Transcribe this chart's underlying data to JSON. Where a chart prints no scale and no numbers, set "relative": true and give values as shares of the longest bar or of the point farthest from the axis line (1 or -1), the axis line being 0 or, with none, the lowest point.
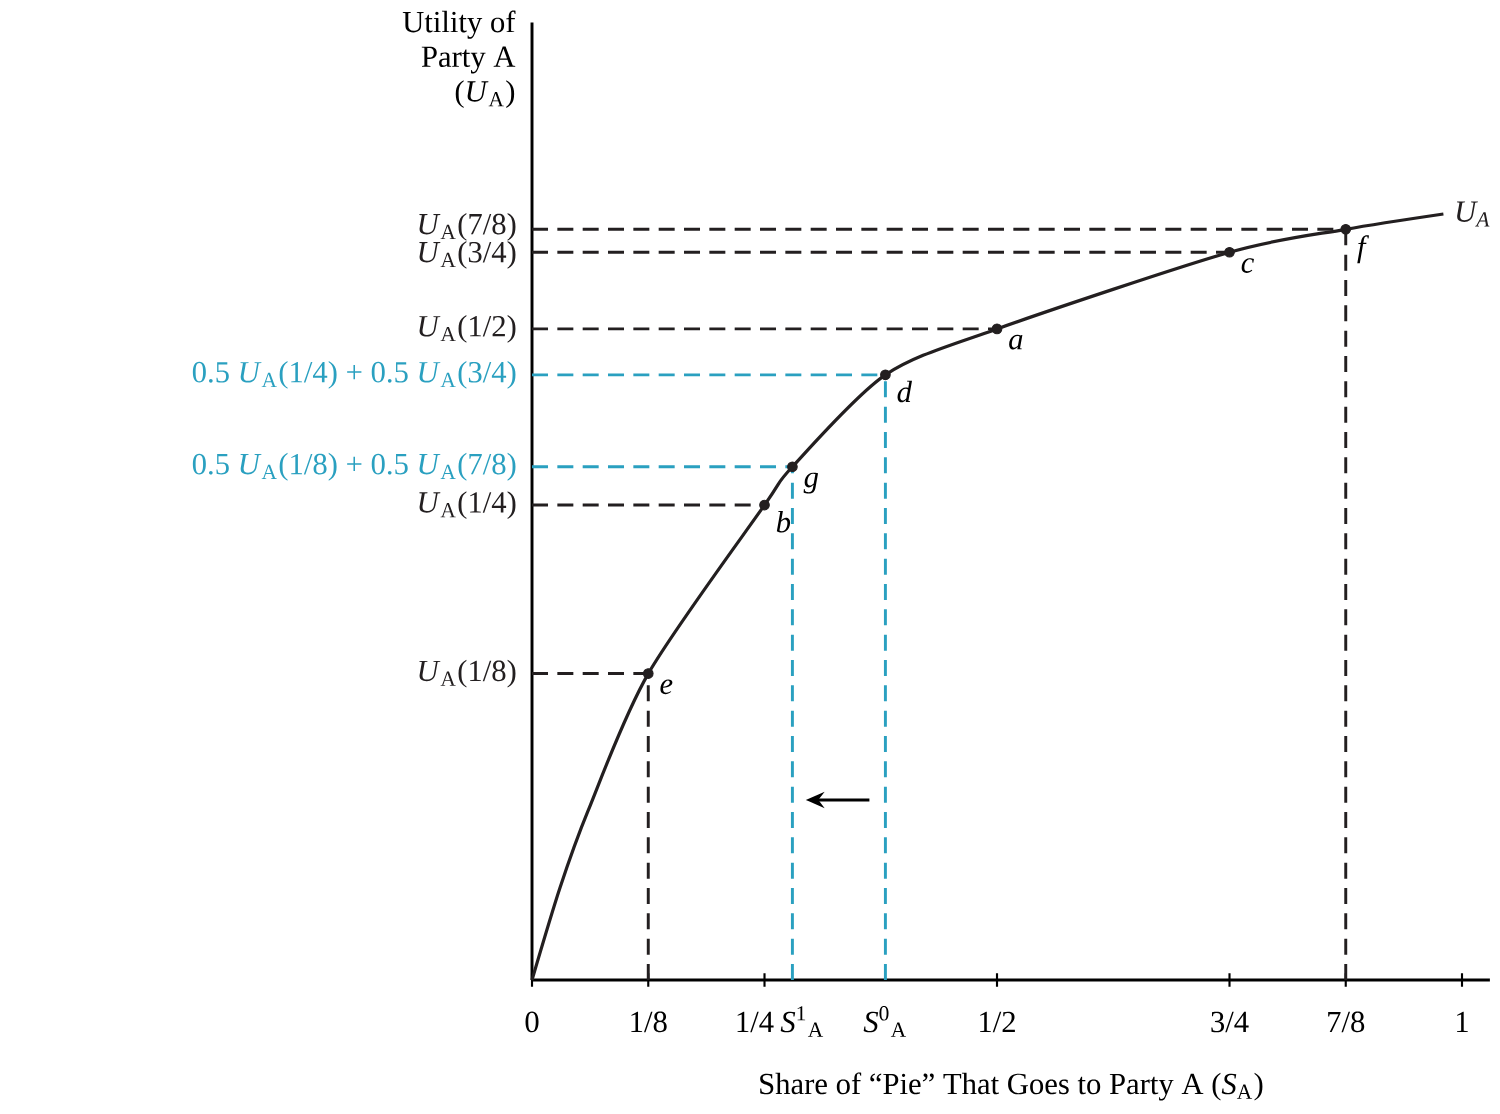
{
  "chart_data": {
    "type": "line",
    "relative": true,
    "xlabel": "Share of “Pie” That Goes to Party A (*S*$_{A}$)",
    "ylabel": "Utility of Party A (*U*$_{A}$)",
    "xlim": [
      0,
      1.03
    ],
    "xticks": [
      0,
      {
        "value": 0.125,
        "label": "1/8"
      },
      {
        "value": 0.25,
        "label": "1/4"
      },
      {
        "value": 0.5,
        "label": "1/2"
      },
      {
        "value": 0.75,
        "label": "3/4"
      },
      {
        "value": 0.875,
        "label": "7/8"
      },
      1
    ],
    "series": [
      {
        "name": "*U*$_{A}$",
        "color": "#231f20",
        "marker": "none",
        "x": [
          0,
          0.03,
          0.06,
          0.125,
          0.25,
          0.28,
          0.38,
          0.5,
          0.75,
          0.875,
          0.98
        ],
        "values": [
          0,
          0.12,
          0.22,
          0.4,
          0.62,
          0.67,
          0.79,
          0.85,
          0.95,
          0.98,
          1
        ]
      },
      {
        "type": "scatter",
        "color": "#231f20",
        "marker": "circle",
        "x": [
          0.125,
          0.25,
          0.28,
          0.38,
          0.5,
          0.75,
          0.875
        ],
        "values": [
          0.4,
          0.62,
          0.67,
          0.79,
          0.85,
          0.95,
          0.98
        ]
      }
    ],
    "ref_lines": [
      {
        "axis": "y",
        "value": 0.98,
        "label": "*U*$_{A}$(7/8)",
        "color": "#231f20",
        "line_style": "dashed"
      },
      {
        "axis": "y",
        "value": 0.95,
        "label": "*U*$_{A}$(3/4)",
        "color": "#231f20",
        "line_style": "dashed"
      },
      {
        "axis": "y",
        "value": 0.85,
        "label": "*U*$_{A}$(1/2)",
        "color": "#231f20",
        "line_style": "dashed"
      },
      {
        "axis": "y",
        "value": 0.79,
        "label": "0.5 *U*$_{A}$(1/4) + 0.5 *U*$_{A}$(3/4)",
        "color": "#2aa0c0",
        "line_style": "dashed"
      },
      {
        "axis": "y",
        "value": 0.67,
        "label": "0.5 *U*$_{A}$(1/8) + 0.5 *U*$_{A}$(7/8)",
        "color": "#2aa0c0",
        "line_style": "dashed"
      },
      {
        "axis": "y",
        "value": 0.62,
        "label": "*U*$_{A}$(1/4)",
        "color": "#231f20",
        "line_style": "dashed"
      },
      {
        "axis": "y",
        "value": 0.4,
        "label": "*U*$_{A}$(1/8)",
        "color": "#231f20",
        "line_style": "dashed"
      },
      {
        "axis": "x",
        "value": 0.125,
        "color": "#231f20",
        "line_style": "dashed"
      },
      {
        "axis": "x",
        "value": 0.28,
        "label": "*S*$^{1}$$_{A}$",
        "color": "#2aa0c0",
        "line_style": "dashed"
      },
      {
        "axis": "x",
        "value": 0.38,
        "label": "*S*$^{0}$$_{A}$",
        "color": "#2aa0c0",
        "line_style": "dashed"
      },
      {
        "axis": "x",
        "value": 0.875,
        "color": "#231f20",
        "line_style": "dashed"
      }
    ],
    "annotations": [
      {
        "text": "e",
        "x": 0.125,
        "y": 0.4
      },
      {
        "text": "b",
        "x": 0.25,
        "y": 0.62
      },
      {
        "text": "g",
        "x": 0.28,
        "y": 0.67
      },
      {
        "text": "d",
        "x": 0.38,
        "y": 0.79
      },
      {
        "text": "a",
        "x": 0.5,
        "y": 0.85
      },
      {
        "text": "c",
        "x": 0.75,
        "y": 0.95
      },
      {
        "text": "f",
        "x": 0.875,
        "y": 0.98
      }
    ]
  }
}
